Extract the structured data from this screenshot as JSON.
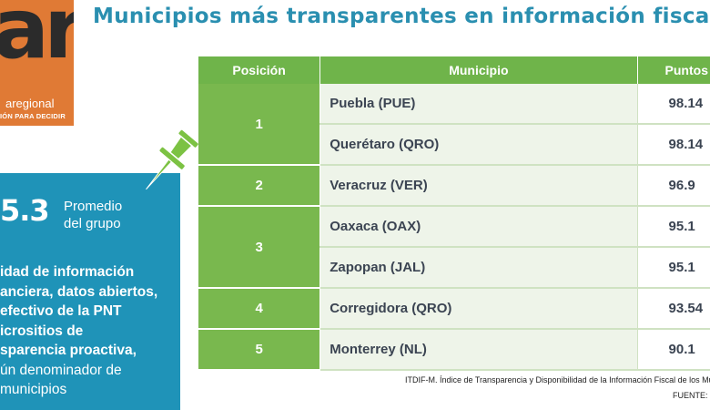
{
  "logo": {
    "mark": "ar.",
    "name": "aregional",
    "tagline": "IÓN PARA DECIDIR"
  },
  "title": "Municipios más transparentes en información fiscal",
  "panel": {
    "score": "5.3",
    "score_label_1": "Promedio",
    "score_label_2": "del grupo",
    "lines": [
      "idad de información",
      "anciera, datos abiertos,",
      " efectivo de la PNT",
      "icrositios de",
      "sparencia proactiva,",
      "ún denominador de",
      "municipios"
    ]
  },
  "table": {
    "headers": [
      "Posición",
      "Municipio",
      "Puntos"
    ],
    "rows": [
      {
        "pos": "1",
        "municipio": "Puebla (PUE)",
        "puntos": "98.14"
      },
      {
        "pos": "",
        "municipio": "Querétaro (QRO)",
        "puntos": "98.14"
      },
      {
        "pos": "2",
        "municipio": "Veracruz (VER)",
        "puntos": "96.9"
      },
      {
        "pos": "3",
        "municipio": "Oaxaca (OAX)",
        "puntos": "95.1"
      },
      {
        "pos": "",
        "municipio": "Zapopan (JAL)",
        "puntos": "95.1"
      },
      {
        "pos": "4",
        "municipio": "Corregidora (QRO)",
        "puntos": "93.54"
      },
      {
        "pos": "5",
        "municipio": "Monterrey (NL)",
        "puntos": "90.1"
      }
    ]
  },
  "footer": {
    "source_note": "ITDIF-M. Índice de Transparencia y Disponibilidad de la Información Fiscal de los Municipios",
    "fuente": "FUENTE: a"
  },
  "colors": {
    "title": "#2a8fb0",
    "panel": "#1f93b8",
    "header_green": "#6fb44a",
    "logo_orange": "#e07a35"
  },
  "icons": [
    "pushpin-icon"
  ]
}
